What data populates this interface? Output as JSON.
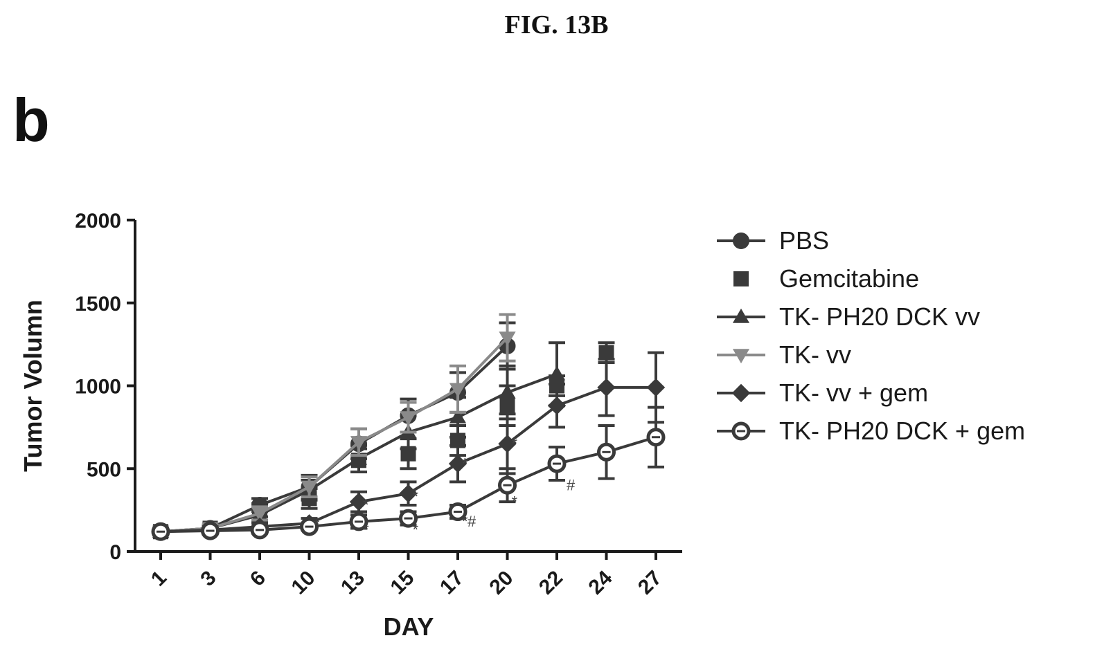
{
  "figure": {
    "title": "FIG. 13B",
    "panel": "b"
  },
  "chart_data": {
    "type": "line",
    "xlabel": "DAY",
    "ylabel": "Tumor Volumn",
    "ylim": [
      0,
      2000
    ],
    "yticks": [
      "0",
      "500",
      "1000",
      "1500",
      "2000"
    ],
    "categories": [
      "1",
      "3",
      "6",
      "10",
      "13",
      "15",
      "17",
      "20",
      "22",
      "24",
      "27"
    ],
    "grid": false,
    "legend_position": "right",
    "series": [
      {
        "name": "PBS",
        "marker": "circle",
        "color": "#3a3a3a",
        "values": [
          120,
          140,
          280,
          390,
          650,
          820,
          960,
          1240,
          null,
          null,
          null
        ],
        "errors": [
          20,
          20,
          40,
          70,
          90,
          100,
          120,
          140,
          null,
          null,
          null
        ]
      },
      {
        "name": "Gemcitabine",
        "marker": "square",
        "color": "#3a3a3a",
        "line": false,
        "values": [
          120,
          140,
          250,
          320,
          550,
          590,
          670,
          880,
          1000,
          1200,
          null
        ],
        "errors": [
          20,
          20,
          40,
          60,
          70,
          90,
          90,
          120,
          60,
          60,
          null
        ]
      },
      {
        "name": "TK- PH20 DCK vv",
        "marker": "triangle-up",
        "color": "#3a3a3a",
        "values": [
          120,
          140,
          220,
          370,
          560,
          720,
          810,
          960,
          1070,
          null,
          null
        ],
        "errors": [
          20,
          20,
          40,
          60,
          80,
          100,
          120,
          160,
          190,
          null,
          null
        ]
      },
      {
        "name": "TK- vv",
        "marker": "triangle-down",
        "color": "#8a8a8a",
        "values": [
          120,
          140,
          230,
          390,
          660,
          810,
          980,
          1290,
          null,
          null,
          null
        ],
        "errors": [
          20,
          20,
          40,
          60,
          80,
          90,
          140,
          140,
          null,
          null,
          null
        ]
      },
      {
        "name": "TK- vv + gem",
        "marker": "diamond",
        "color": "#3a3a3a",
        "values": [
          120,
          130,
          150,
          170,
          300,
          350,
          530,
          650,
          880,
          990,
          990
        ],
        "errors": [
          20,
          20,
          20,
          30,
          60,
          70,
          110,
          180,
          130,
          170,
          210
        ]
      },
      {
        "name": "TK- PH20 DCK + gem",
        "marker": "circle-open",
        "color": "#3a3a3a",
        "values": [
          120,
          125,
          130,
          150,
          180,
          200,
          240,
          400,
          530,
          600,
          690
        ],
        "errors": [
          20,
          20,
          20,
          20,
          40,
          40,
          40,
          100,
          100,
          160,
          180
        ]
      }
    ],
    "annotations": [
      {
        "text": "*",
        "x": "10",
        "y": 130
      },
      {
        "text": "*",
        "x": "13",
        "y": 100
      },
      {
        "text": "*",
        "x": "13",
        "y": 250
      },
      {
        "text": "*",
        "x": "15",
        "y": 100
      },
      {
        "text": "*",
        "x": "15",
        "y": 300
      },
      {
        "text": "*",
        "x": "17",
        "y": 150
      },
      {
        "text": "#",
        "x": "17",
        "y": 150
      },
      {
        "text": "*",
        "x": "17",
        "y": 500
      },
      {
        "text": "*",
        "x": "20",
        "y": 270
      },
      {
        "text": "*",
        "x": "20",
        "y": 620
      },
      {
        "text": "#",
        "x": "22",
        "y": 370
      }
    ]
  }
}
